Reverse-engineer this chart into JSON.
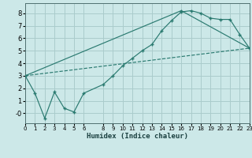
{
  "xlabel": "Humidex (Indice chaleur)",
  "bg_color": "#cce8e8",
  "grid_color": "#aacccc",
  "line_color": "#2a7a70",
  "series1_x": [
    0,
    1,
    2,
    3,
    4,
    5,
    6,
    8,
    9,
    10,
    11,
    12,
    13,
    14,
    15,
    16,
    17,
    18,
    19,
    20,
    21,
    22,
    23
  ],
  "series1_y": [
    3.0,
    1.6,
    -0.4,
    1.7,
    0.4,
    0.1,
    1.6,
    2.3,
    3.0,
    3.8,
    4.4,
    5.0,
    5.5,
    6.6,
    7.4,
    8.1,
    8.2,
    8.0,
    7.6,
    7.5,
    7.5,
    6.3,
    5.2
  ],
  "series2_x": [
    0,
    23
  ],
  "series2_y": [
    3.0,
    5.2
  ],
  "series3_x": [
    0,
    16,
    23
  ],
  "series3_y": [
    3.0,
    8.2,
    5.2
  ],
  "xlim": [
    0,
    23
  ],
  "ylim": [
    -0.8,
    8.8
  ],
  "yticks": [
    0,
    1,
    2,
    3,
    4,
    5,
    6,
    7,
    8
  ],
  "xticks": [
    0,
    1,
    2,
    3,
    4,
    5,
    6,
    8,
    9,
    10,
    11,
    12,
    13,
    14,
    15,
    16,
    17,
    18,
    19,
    20,
    21,
    22,
    23
  ]
}
